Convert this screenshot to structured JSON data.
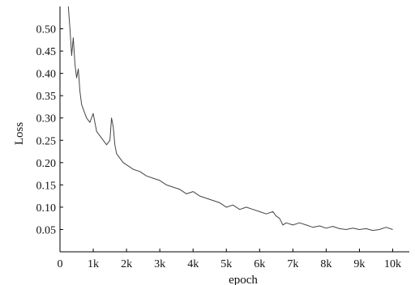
{
  "chart_data": {
    "type": "line",
    "title": "",
    "xlabel": "epoch",
    "ylabel": "Loss",
    "xlim": [
      0,
      10500
    ],
    "ylim": [
      0.0,
      0.55
    ],
    "x_ticks": [
      0,
      1000,
      2000,
      3000,
      4000,
      5000,
      6000,
      7000,
      8000,
      9000,
      10000
    ],
    "x_tick_labels": [
      "0",
      "1k",
      "2k",
      "3k",
      "4k",
      "5k",
      "6k",
      "7k",
      "8k",
      "9k",
      "10k"
    ],
    "y_ticks": [
      0.05,
      0.1,
      0.15,
      0.2,
      0.25,
      0.3,
      0.35,
      0.4,
      0.45,
      0.5
    ],
    "y_tick_labels": [
      "0.05",
      "0.10",
      "0.15",
      "0.20",
      "0.25",
      "0.30",
      "0.35",
      "0.40",
      "0.45",
      "0.50"
    ],
    "grid": false,
    "line_color": "#444444",
    "series": [
      {
        "x": [
          250,
          300,
          350,
          400,
          450,
          500,
          550,
          600,
          650,
          700,
          800,
          900,
          1000,
          1100,
          1200,
          1300,
          1400,
          1500,
          1550,
          1600,
          1650,
          1700,
          1800,
          1900,
          2000,
          2200,
          2400,
          2600,
          2800,
          3000,
          3200,
          3400,
          3600,
          3800,
          4000,
          4200,
          4400,
          4600,
          4800,
          5000,
          5200,
          5400,
          5600,
          5800,
          6000,
          6200,
          6400,
          6500,
          6600,
          6700,
          6800,
          7000,
          7200,
          7400,
          7600,
          7800,
          8000,
          8200,
          8400,
          8600,
          8800,
          9000,
          9200,
          9400,
          9600,
          9800,
          10000
        ],
        "y": [
          0.55,
          0.5,
          0.44,
          0.48,
          0.42,
          0.39,
          0.41,
          0.36,
          0.33,
          0.32,
          0.3,
          0.29,
          0.31,
          0.27,
          0.26,
          0.25,
          0.24,
          0.25,
          0.3,
          0.28,
          0.24,
          0.22,
          0.21,
          0.2,
          0.195,
          0.185,
          0.18,
          0.17,
          0.165,
          0.16,
          0.15,
          0.145,
          0.14,
          0.13,
          0.135,
          0.125,
          0.12,
          0.115,
          0.11,
          0.1,
          0.105,
          0.095,
          0.1,
          0.095,
          0.09,
          0.085,
          0.09,
          0.08,
          0.075,
          0.06,
          0.065,
          0.06,
          0.065,
          0.06,
          0.055,
          0.058,
          0.053,
          0.057,
          0.052,
          0.05,
          0.053,
          0.05,
          0.052,
          0.048,
          0.05,
          0.055,
          0.05
        ]
      }
    ]
  }
}
